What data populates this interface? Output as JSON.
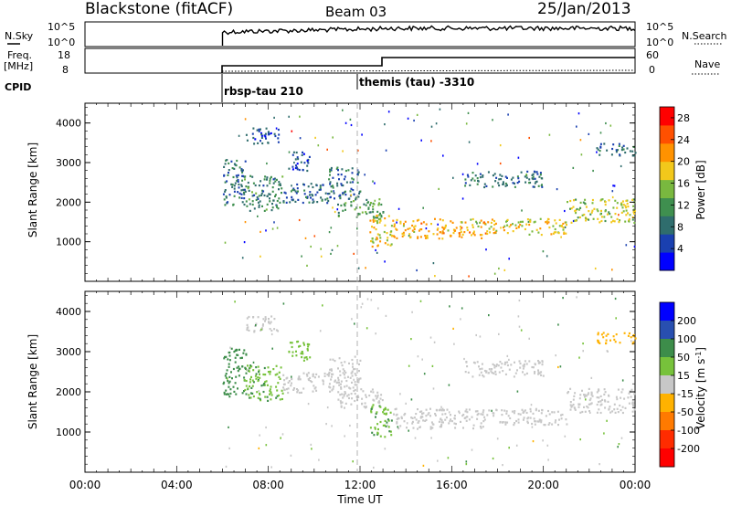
{
  "header": {
    "station": "Blackstone (fitACF)",
    "beam": "Beam 03",
    "date": "25/Jan/2013"
  },
  "noise_panel": {
    "left_label": "N.Sky",
    "left_ticks": [
      "10^5",
      "10^0"
    ],
    "right_label": "N.Search",
    "right_ticks": [
      "10^5",
      "10^0"
    ]
  },
  "freq_panel": {
    "left_label_1": "Freq.",
    "left_label_2": "[MHz]",
    "left_ticks": [
      "18",
      "8"
    ],
    "right_label": "Nave",
    "right_ticks": [
      "60",
      "0"
    ]
  },
  "cpid": {
    "label": "CPID",
    "segments": [
      {
        "name": "rbsp-tau 210",
        "start_hour": 6.0
      },
      {
        "name": "themis (tau) -3310",
        "start_hour": 12.0
      }
    ]
  },
  "colors": {
    "power_scale": [
      "#0000ff",
      "#1a40b0",
      "#2f6d6d",
      "#3f8f4f",
      "#79b83f",
      "#f2c81b",
      "#ff9200",
      "#ff5000",
      "#ff0000"
    ],
    "velocity_scale": [
      "#0000ff",
      "#284fb0",
      "#3d8d4a",
      "#77c23b",
      "#c7c7c7",
      "#ffb200",
      "#ff7a00",
      "#ff2c00",
      "#ff0000"
    ],
    "frame": "#000000",
    "guide_line": "#b0b0b0"
  },
  "chart_data": [
    {
      "type": "heatmap",
      "title": "",
      "xlabel": "Time UT",
      "ylabel": "Slant Range [km]",
      "xlim": [
        0,
        24
      ],
      "ylim": [
        0,
        4500
      ],
      "x_ticks": [
        "00:00",
        "04:00",
        "08:00",
        "12:00",
        "16:00",
        "20:00",
        "00:00"
      ],
      "y_ticks": [
        "1000",
        "2000",
        "3000",
        "4000"
      ],
      "colorbar_label": "Power [dB]",
      "colorbar_ticks": [
        "4",
        "8",
        "12",
        "16",
        "20",
        "24",
        "28"
      ],
      "colorbar_range": [
        0,
        30
      ],
      "regions": [
        {
          "t0": 6.0,
          "t1": 7.0,
          "r0": 1900,
          "r1": 3100,
          "value": 8
        },
        {
          "t0": 6.9,
          "t1": 8.6,
          "r0": 1800,
          "r1": 2700,
          "value": 10
        },
        {
          "t0": 8.6,
          "t1": 10.8,
          "r0": 2000,
          "r1": 2500,
          "value": 8
        },
        {
          "t0": 7.0,
          "t1": 8.5,
          "r0": 3500,
          "r1": 3900,
          "value": 6
        },
        {
          "t0": 8.8,
          "t1": 9.8,
          "r0": 2800,
          "r1": 3300,
          "value": 6
        },
        {
          "t0": 10.6,
          "t1": 12.0,
          "r0": 2100,
          "r1": 2900,
          "value": 8
        },
        {
          "t0": 11.0,
          "t1": 13.0,
          "r0": 1600,
          "r1": 2100,
          "value": 12
        },
        {
          "t0": 12.4,
          "t1": 13.4,
          "r0": 900,
          "r1": 1700,
          "value": 18
        },
        {
          "t0": 13.4,
          "t1": 17.5,
          "r0": 1100,
          "r1": 1600,
          "value": 20
        },
        {
          "t0": 17.5,
          "t1": 21.0,
          "r0": 1200,
          "r1": 1600,
          "value": 18
        },
        {
          "t0": 21.0,
          "t1": 24.0,
          "r0": 1500,
          "r1": 2100,
          "value": 16
        },
        {
          "t0": 16.5,
          "t1": 20.0,
          "r0": 2400,
          "r1": 2800,
          "value": 8
        },
        {
          "t0": 22.3,
          "t1": 24.0,
          "r0": 3200,
          "r1": 3500,
          "value": 8
        }
      ]
    },
    {
      "type": "heatmap",
      "title": "",
      "xlabel": "Time UT",
      "ylabel": "Slant Range [km]",
      "xlim": [
        0,
        24
      ],
      "ylim": [
        0,
        4500
      ],
      "x_ticks": [
        "00:00",
        "04:00",
        "08:00",
        "12:00",
        "16:00",
        "20:00",
        "00:00"
      ],
      "y_ticks": [
        "1000",
        "2000",
        "3000",
        "4000"
      ],
      "colorbar_label": "Velocity [m s^-1]",
      "colorbar_ticks": [
        "200",
        "100",
        "50",
        "15",
        "-15",
        "-50",
        "-100",
        "-200"
      ],
      "regions": [
        {
          "t0": 6.0,
          "t1": 7.0,
          "r0": 1900,
          "r1": 3100,
          "value": 40
        },
        {
          "t0": 6.9,
          "t1": 8.6,
          "r0": 1800,
          "r1": 2700,
          "value": 30
        },
        {
          "t0": 8.6,
          "t1": 10.8,
          "r0": 2000,
          "r1": 2500,
          "value": 10
        },
        {
          "t0": 7.0,
          "t1": 8.5,
          "r0": 3500,
          "r1": 3900,
          "value": 5
        },
        {
          "t0": 8.8,
          "t1": 9.8,
          "r0": 2800,
          "r1": 3300,
          "value": 25
        },
        {
          "t0": 10.6,
          "t1": 12.0,
          "r0": 2100,
          "r1": 2900,
          "value": 10
        },
        {
          "t0": 11.0,
          "t1": 13.0,
          "r0": 1600,
          "r1": 2100,
          "value": 5
        },
        {
          "t0": 12.4,
          "t1": 13.4,
          "r0": 900,
          "r1": 1700,
          "value": 30
        },
        {
          "t0": 13.4,
          "t1": 17.5,
          "r0": 1100,
          "r1": 1600,
          "value": 0
        },
        {
          "t0": 17.5,
          "t1": 21.0,
          "r0": 1200,
          "r1": 1600,
          "value": 0
        },
        {
          "t0": 21.0,
          "t1": 24.0,
          "r0": 1500,
          "r1": 2100,
          "value": 0
        },
        {
          "t0": 16.5,
          "t1": 20.0,
          "r0": 2400,
          "r1": 2800,
          "value": 0
        },
        {
          "t0": 22.3,
          "t1": 24.0,
          "r0": 3200,
          "r1": 3500,
          "value": -20
        }
      ]
    }
  ]
}
